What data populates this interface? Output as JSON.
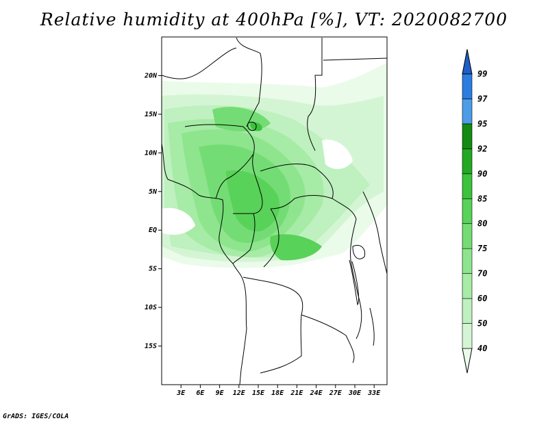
{
  "title": "Relative humidity at 400hPa [%], VT: 2020082700",
  "credit": "GrADS: IGES/COLA",
  "map": {
    "lon_range": [
      0,
      35
    ],
    "lat_range": [
      -20,
      25
    ],
    "lat_labels": [
      "20N",
      "15N",
      "10N",
      "5N",
      "EQ",
      "5S",
      "10S",
      "15S"
    ],
    "lat_values": [
      20,
      15,
      10,
      5,
      0,
      -5,
      -10,
      -15
    ],
    "lon_labels": [
      "3E",
      "6E",
      "9E",
      "12E",
      "15E",
      "18E",
      "21E",
      "24E",
      "27E",
      "30E",
      "33E"
    ],
    "lon_values": [
      3,
      6,
      9,
      12,
      15,
      18,
      21,
      24,
      27,
      30,
      33
    ]
  },
  "colorbar": {
    "levels": [
      "40",
      "50",
      "60",
      "70",
      "75",
      "80",
      "85",
      "90",
      "92",
      "95",
      "97",
      "99"
    ],
    "colors": [
      "#eafbea",
      "#d4f5d4",
      "#bff0bf",
      "#a6eba6",
      "#8ee58e",
      "#74dc74",
      "#58d258",
      "#3cc23c",
      "#23a823",
      "#138a13",
      "#4d9ce8",
      "#2b7de0",
      "#1e5fc7"
    ]
  }
}
